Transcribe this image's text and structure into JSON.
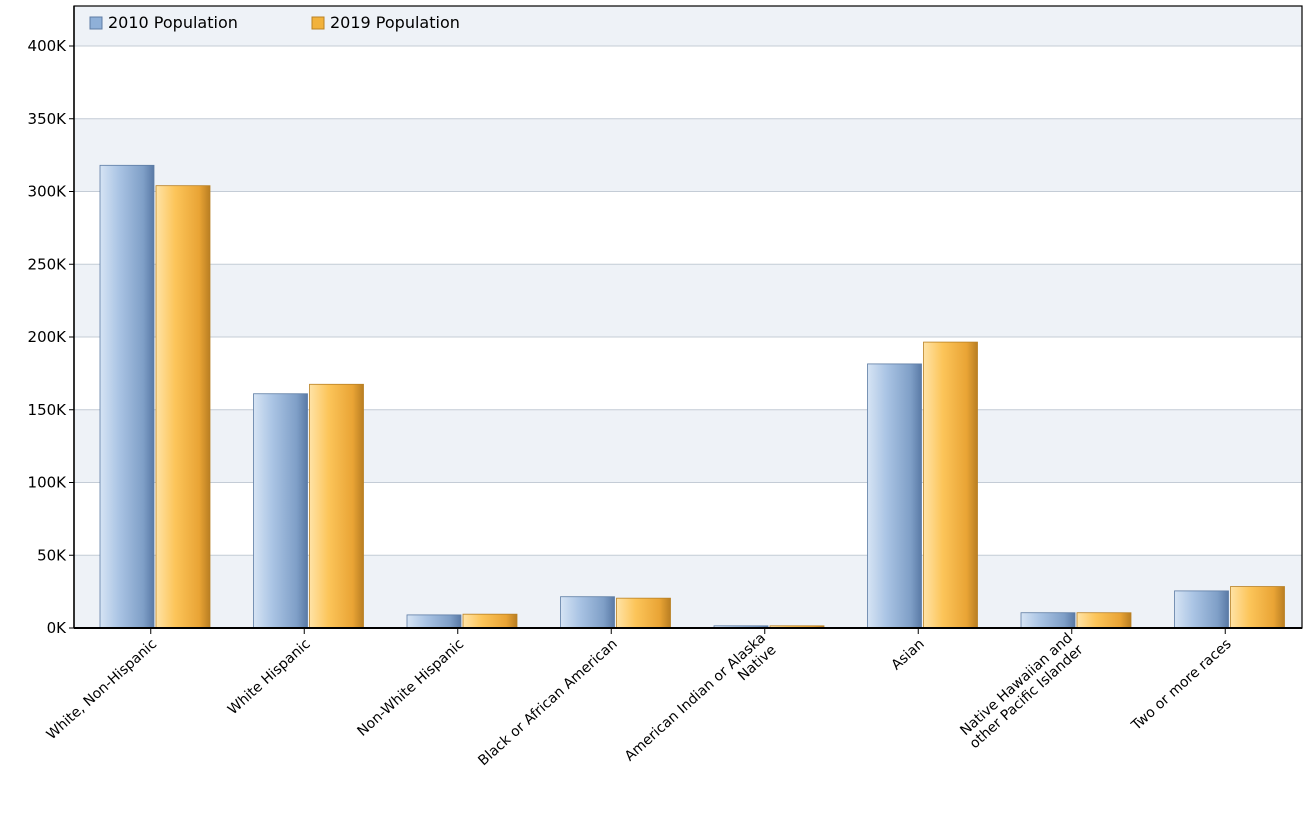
{
  "chart_data": {
    "type": "bar",
    "categories": [
      [
        "White, Non-Hispanic"
      ],
      [
        "White Hispanic"
      ],
      [
        "Non-White Hispanic"
      ],
      [
        "Black or African American"
      ],
      [
        "American Indian or Alaska",
        "Native"
      ],
      [
        "Asian"
      ],
      [
        "Native Hawaiian and",
        "other Pacific Islander"
      ],
      [
        "Two or more races"
      ]
    ],
    "series": [
      {
        "name": "2010 Population",
        "color": "#8fb0d8",
        "values": [
          318000,
          161000,
          9000,
          21500,
          1500,
          181500,
          10500,
          25500
        ]
      },
      {
        "name": "2019 Population",
        "color": "#f2b23c",
        "values": [
          304000,
          167500,
          9500,
          20500,
          1500,
          196500,
          10500,
          28500
        ]
      }
    ],
    "ylim": [
      0,
      400000
    ],
    "yticks": [
      {
        "value": 0,
        "label": "0K"
      },
      {
        "value": 50000,
        "label": "50K"
      },
      {
        "value": 100000,
        "label": "100K"
      },
      {
        "value": 150000,
        "label": "150K"
      },
      {
        "value": 200000,
        "label": "200K"
      },
      {
        "value": 250000,
        "label": "250K"
      },
      {
        "value": 300000,
        "label": "300K"
      },
      {
        "value": 350000,
        "label": "350K"
      },
      {
        "value": 400000,
        "label": "400K"
      }
    ],
    "legend_position": "top-left",
    "grid": true,
    "title": "",
    "xlabel": "",
    "ylabel": ""
  }
}
